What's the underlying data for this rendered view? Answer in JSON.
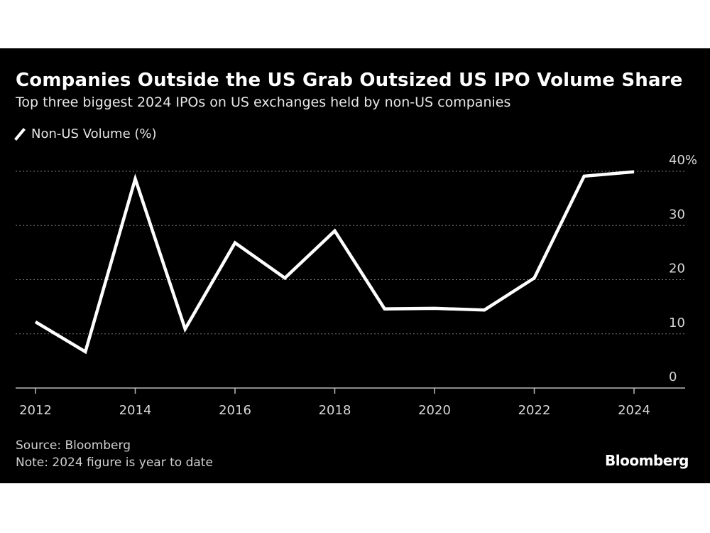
{
  "chart_data": {
    "type": "line",
    "title": "Companies Outside the US Grab Outsized US IPO Volume Share",
    "subtitle": "Top three biggest 2024 IPOs on US exchanges held by non-US companies",
    "legend": "top-left",
    "series": [
      {
        "name": "Non-US Volume (%)",
        "color": "#ffffff",
        "x": [
          2012,
          2013,
          2014,
          2015,
          2016,
          2017,
          2018,
          2019,
          2020,
          2021,
          2022,
          2023,
          2024
        ],
        "values": [
          12.2,
          6.7,
          38.6,
          10.9,
          26.8,
          20.3,
          29.0,
          14.6,
          14.7,
          14.4,
          20.3,
          39.1,
          39.9
        ]
      }
    ],
    "xlim": [
      2012,
      2024
    ],
    "ylim": [
      0,
      40
    ],
    "x_ticks": [
      "2012",
      "2014",
      "2016",
      "2018",
      "2020",
      "2022",
      "2024"
    ],
    "y_ticks": [
      {
        "v": 40,
        "label": "40%"
      },
      {
        "v": 30,
        "label": "30"
      },
      {
        "v": 20,
        "label": "20"
      },
      {
        "v": 10,
        "label": "10"
      },
      {
        "v": 0,
        "label": "0"
      }
    ],
    "grid": true,
    "y_axis_side": "right"
  },
  "footer": {
    "source": "Source: Bloomberg",
    "note": "Note: 2024 figure is year to date",
    "logo": "Bloomberg"
  }
}
